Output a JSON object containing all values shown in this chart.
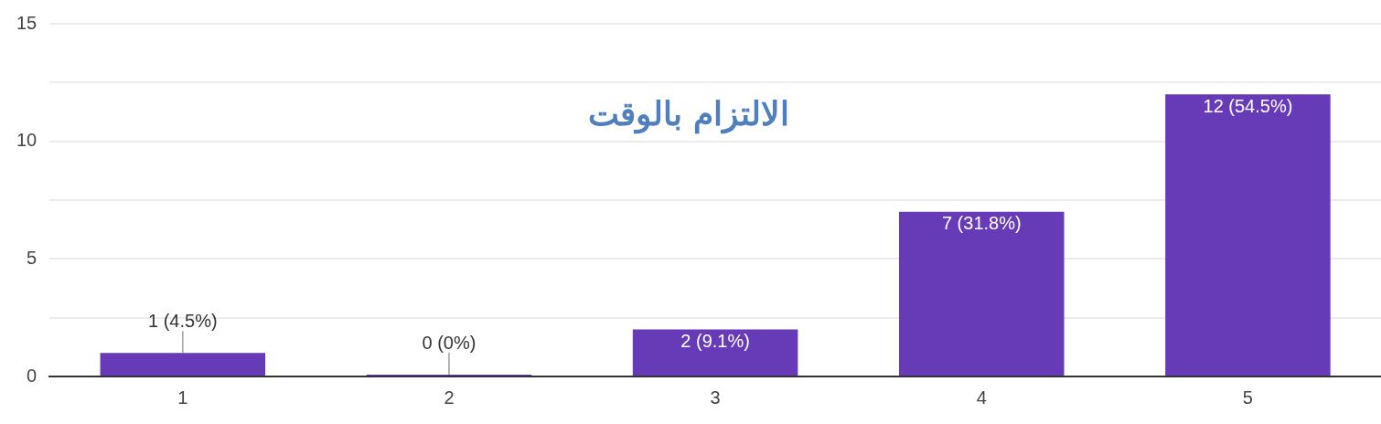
{
  "chart_data": {
    "type": "bar",
    "title": "الالتزام بالوقت",
    "categories": [
      "1",
      "2",
      "3",
      "4",
      "5"
    ],
    "values": [
      1,
      0,
      2,
      7,
      12
    ],
    "value_labels": [
      "1 (4.5%)",
      "0 (0%)",
      "2 (9.1%)",
      "7 (31.8%)",
      "12 (54.5%)"
    ],
    "color": "#673ab7",
    "ylim": [
      0,
      15
    ],
    "yticks": [
      0,
      {
        "value": 2.5,
        "label": null
      },
      5,
      {
        "value": 7.5,
        "label": null
      },
      10,
      {
        "value": 12.5,
        "label": null
      },
      15
    ],
    "grid": true
  }
}
